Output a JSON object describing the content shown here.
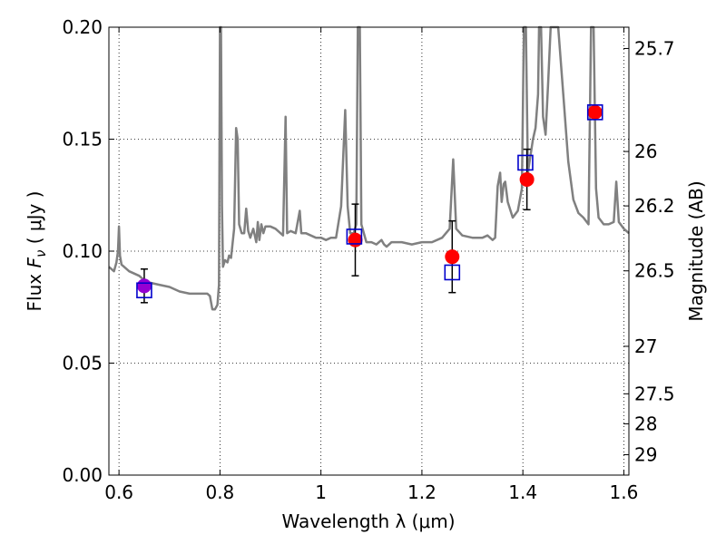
{
  "chart_data": {
    "type": "scatter",
    "xlabel": "Wavelength  λ (μm)",
    "ylabel": "Flux  F_ν  ( μJy )",
    "ylabel_parts": {
      "prefix": "Flux  ",
      "symbol": "F",
      "sub": "ν",
      "suffix": "  ( μJy )"
    },
    "y2label": "Magnitude (AB)",
    "xlim": [
      0.58,
      1.61
    ],
    "ylim": [
      0.0,
      0.2
    ],
    "grid": true,
    "grid_style": "dotted",
    "xticks": [
      0.6,
      0.8,
      1.0,
      1.2,
      1.4,
      1.6
    ],
    "xtick_labels": [
      "0.6",
      "0.8",
      "1",
      "1.2",
      "1.4",
      "1.6"
    ],
    "yticks": [
      0.0,
      0.05,
      0.1,
      0.15,
      0.2
    ],
    "ytick_labels": [
      "0.00",
      "0.05",
      "0.10",
      "0.15",
      "0.20"
    ],
    "y2ticks": [
      {
        "label": "25.7",
        "flux": 0.1905
      },
      {
        "label": "26",
        "flux": 0.1445
      },
      {
        "label": "26.2",
        "flux": 0.1202
      },
      {
        "label": "26.5",
        "flux": 0.0912
      },
      {
        "label": "27",
        "flux": 0.0575
      },
      {
        "label": "27.5",
        "flux": 0.0363
      },
      {
        "label": "28",
        "flux": 0.0229
      },
      {
        "label": "29",
        "flux": 0.0091
      }
    ],
    "colors": {
      "spectrum": "#808080",
      "model_marker": "#0000cc",
      "observed": "#ff0000",
      "special_observed": "#9400d3",
      "errorbar": "#000000"
    },
    "spectrum": [
      [
        0.58,
        0.093
      ],
      [
        0.59,
        0.091
      ],
      [
        0.595,
        0.095
      ],
      [
        0.598,
        0.1
      ],
      [
        0.6,
        0.111
      ],
      [
        0.602,
        0.098
      ],
      [
        0.605,
        0.094
      ],
      [
        0.62,
        0.091
      ],
      [
        0.64,
        0.089
      ],
      [
        0.65,
        0.087
      ],
      [
        0.66,
        0.086
      ],
      [
        0.68,
        0.085
      ],
      [
        0.7,
        0.084
      ],
      [
        0.72,
        0.082
      ],
      [
        0.74,
        0.081
      ],
      [
        0.76,
        0.081
      ],
      [
        0.775,
        0.081
      ],
      [
        0.78,
        0.08
      ],
      [
        0.785,
        0.074
      ],
      [
        0.79,
        0.074
      ],
      [
        0.795,
        0.076
      ],
      [
        0.798,
        0.085
      ],
      [
        0.8,
        0.21
      ],
      [
        0.802,
        0.21
      ],
      [
        0.804,
        0.12
      ],
      [
        0.806,
        0.093
      ],
      [
        0.81,
        0.096
      ],
      [
        0.815,
        0.095
      ],
      [
        0.818,
        0.098
      ],
      [
        0.822,
        0.097
      ],
      [
        0.828,
        0.11
      ],
      [
        0.832,
        0.155
      ],
      [
        0.835,
        0.15
      ],
      [
        0.838,
        0.112
      ],
      [
        0.843,
        0.108
      ],
      [
        0.848,
        0.108
      ],
      [
        0.852,
        0.119
      ],
      [
        0.856,
        0.109
      ],
      [
        0.86,
        0.106
      ],
      [
        0.866,
        0.11
      ],
      [
        0.872,
        0.104
      ],
      [
        0.875,
        0.113
      ],
      [
        0.878,
        0.105
      ],
      [
        0.882,
        0.112
      ],
      [
        0.886,
        0.108
      ],
      [
        0.89,
        0.111
      ],
      [
        0.9,
        0.111
      ],
      [
        0.91,
        0.11
      ],
      [
        0.92,
        0.108
      ],
      [
        0.925,
        0.107
      ],
      [
        0.93,
        0.16
      ],
      [
        0.933,
        0.108
      ],
      [
        0.94,
        0.109
      ],
      [
        0.95,
        0.108
      ],
      [
        0.958,
        0.118
      ],
      [
        0.961,
        0.108
      ],
      [
        0.97,
        0.108
      ],
      [
        0.98,
        0.107
      ],
      [
        0.99,
        0.106
      ],
      [
        1.0,
        0.106
      ],
      [
        1.01,
        0.105
      ],
      [
        1.02,
        0.106
      ],
      [
        1.03,
        0.106
      ],
      [
        1.04,
        0.12
      ],
      [
        1.048,
        0.163
      ],
      [
        1.053,
        0.12
      ],
      [
        1.058,
        0.108
      ],
      [
        1.065,
        0.108
      ],
      [
        1.07,
        0.112
      ],
      [
        1.073,
        0.21
      ],
      [
        1.077,
        0.21
      ],
      [
        1.08,
        0.112
      ],
      [
        1.09,
        0.104
      ],
      [
        1.1,
        0.104
      ],
      [
        1.11,
        0.103
      ],
      [
        1.12,
        0.105
      ],
      [
        1.125,
        0.103
      ],
      [
        1.13,
        0.102
      ],
      [
        1.14,
        0.104
      ],
      [
        1.16,
        0.104
      ],
      [
        1.18,
        0.103
      ],
      [
        1.2,
        0.104
      ],
      [
        1.22,
        0.104
      ],
      [
        1.24,
        0.106
      ],
      [
        1.255,
        0.11
      ],
      [
        1.262,
        0.141
      ],
      [
        1.268,
        0.11
      ],
      [
        1.28,
        0.107
      ],
      [
        1.3,
        0.106
      ],
      [
        1.32,
        0.106
      ],
      [
        1.33,
        0.107
      ],
      [
        1.34,
        0.105
      ],
      [
        1.345,
        0.106
      ],
      [
        1.35,
        0.129
      ],
      [
        1.355,
        0.135
      ],
      [
        1.358,
        0.122
      ],
      [
        1.362,
        0.13
      ],
      [
        1.365,
        0.131
      ],
      [
        1.37,
        0.122
      ],
      [
        1.38,
        0.115
      ],
      [
        1.39,
        0.118
      ],
      [
        1.398,
        0.128
      ],
      [
        1.402,
        0.21
      ],
      [
        1.406,
        0.21
      ],
      [
        1.41,
        0.135
      ],
      [
        1.42,
        0.15
      ],
      [
        1.425,
        0.155
      ],
      [
        1.43,
        0.17
      ],
      [
        1.432,
        0.21
      ],
      [
        1.436,
        0.21
      ],
      [
        1.44,
        0.16
      ],
      [
        1.445,
        0.152
      ],
      [
        1.45,
        0.175
      ],
      [
        1.455,
        0.21
      ],
      [
        1.47,
        0.21
      ],
      [
        1.48,
        0.17
      ],
      [
        1.49,
        0.14
      ],
      [
        1.5,
        0.123
      ],
      [
        1.51,
        0.117
      ],
      [
        1.52,
        0.115
      ],
      [
        1.53,
        0.112
      ],
      [
        1.535,
        0.21
      ],
      [
        1.54,
        0.21
      ],
      [
        1.545,
        0.128
      ],
      [
        1.55,
        0.115
      ],
      [
        1.56,
        0.112
      ],
      [
        1.57,
        0.112
      ],
      [
        1.58,
        0.113
      ],
      [
        1.585,
        0.131
      ],
      [
        1.59,
        0.113
      ],
      [
        1.6,
        0.11
      ],
      [
        1.61,
        0.108
      ]
    ],
    "model_points": [
      {
        "x": 0.65,
        "y": 0.0825
      },
      {
        "x": 1.066,
        "y": 0.1065
      },
      {
        "x": 1.26,
        "y": 0.0905
      },
      {
        "x": 1.405,
        "y": 0.1395
      },
      {
        "x": 1.543,
        "y": 0.162
      }
    ],
    "observed_points": [
      {
        "x": 0.65,
        "y": 0.0845,
        "yerr": 0.0075,
        "color": "special_observed"
      },
      {
        "x": 1.068,
        "y": 0.105,
        "yerr": 0.016,
        "color": "observed"
      },
      {
        "x": 1.26,
        "y": 0.0975,
        "yerr": 0.016,
        "color": "observed"
      },
      {
        "x": 1.408,
        "y": 0.132,
        "yerr": 0.0135,
        "color": "observed"
      },
      {
        "x": 1.543,
        "y": 0.162,
        "yerr": 0,
        "color": "observed"
      }
    ]
  }
}
